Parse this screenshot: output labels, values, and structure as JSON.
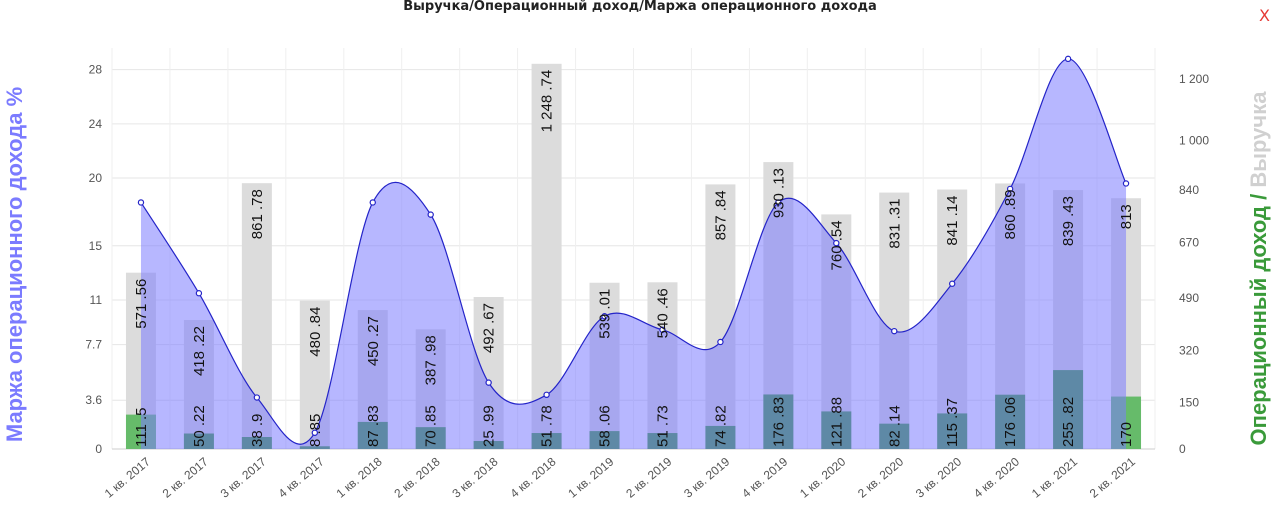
{
  "close_label": "X",
  "chart_data": {
    "type": "bar",
    "title": "Выручка/Операционный доход/Маржа операционного дохода",
    "categories": [
      "1 кв. 2017",
      "2 кв. 2017",
      "3 кв. 2017",
      "4 кв. 2017",
      "1 кв. 2018",
      "2 кв. 2018",
      "3 кв. 2018",
      "4 кв. 2018",
      "1 кв. 2019",
      "2 кв. 2019",
      "3 кв. 2019",
      "4 кв. 2019",
      "1 кв. 2020",
      "2 кв. 2020",
      "3 кв. 2020",
      "4 кв. 2020",
      "1 кв. 2021",
      "2 кв. 2021"
    ],
    "series": [
      {
        "axis": "right",
        "color": "#dcdcdc",
        "values": [
          571.56,
          418.22,
          861.78,
          480.84,
          450.27,
          387.98,
          492.67,
          1248.74,
          539.01,
          540.46,
          857.84,
          930.13,
          760.54,
          831.31,
          841.14,
          860.89,
          839.43,
          813
        ],
        "labels": [
          "571 .56",
          "418 .22",
          "861 .78",
          "480 .84",
          "450 .27",
          "387 .98",
          "492 .67",
          "1 248 .74",
          "539 .01",
          "540 .46",
          "857 .84",
          "930 .13",
          "760 .54",
          "831 .31",
          "841 .14",
          "860 .89",
          "839 .43",
          "813"
        ]
      },
      {
        "axis": "right",
        "colors": {
          "positive": "#66bb6a",
          "other": "#3a9a3a"
        },
        "values": [
          111.5,
          50.22,
          38.9,
          8.85,
          87.83,
          70.85,
          25.99,
          51.78,
          58.06,
          51.73,
          74.82,
          176.83,
          121.88,
          82.14,
          115.37,
          176.06,
          255.82,
          170
        ],
        "labels": [
          "111 .5",
          "50 .22",
          "38 .9",
          "8 .85",
          "87 .83",
          "70 .85",
          "25 .99",
          "51 .78",
          "58 .06",
          "51 .73",
          "74 .82",
          "176 .83",
          "121 .88",
          "82 .14",
          "115 .37",
          "176 .06",
          "255 .82",
          "170"
        ]
      },
      {
        "axis": "left",
        "type": "area",
        "color": "#7b7bff",
        "values": [
          18.2,
          11.5,
          3.8,
          1.2,
          18.2,
          17.3,
          4.9,
          4.0,
          9.8,
          8.8,
          7.9,
          18.2,
          15.2,
          8.7,
          12.2,
          19.2,
          28.8,
          19.6
        ]
      }
    ],
    "y_left": {
      "label": "Маржа операционного дохода %",
      "ticks": [
        0,
        3.6,
        7.7,
        11,
        15,
        20,
        24,
        28
      ],
      "range": [
        0,
        29.6
      ],
      "color": "#7b7bff"
    },
    "y_right": {
      "label_parts": [
        {
          "text": "Операционный доход / ",
          "color": "#3a9a3a"
        },
        {
          "text": "Выручка",
          "color": "#d0d0d0"
        }
      ],
      "ticks": [
        0,
        150,
        320,
        490,
        670,
        840,
        1000,
        1200
      ],
      "tick_labels": [
        "0",
        "150",
        "320",
        "490",
        "670",
        "840",
        "1 000",
        "1 200"
      ],
      "range": [
        0,
        1300
      ]
    },
    "grid": true
  }
}
